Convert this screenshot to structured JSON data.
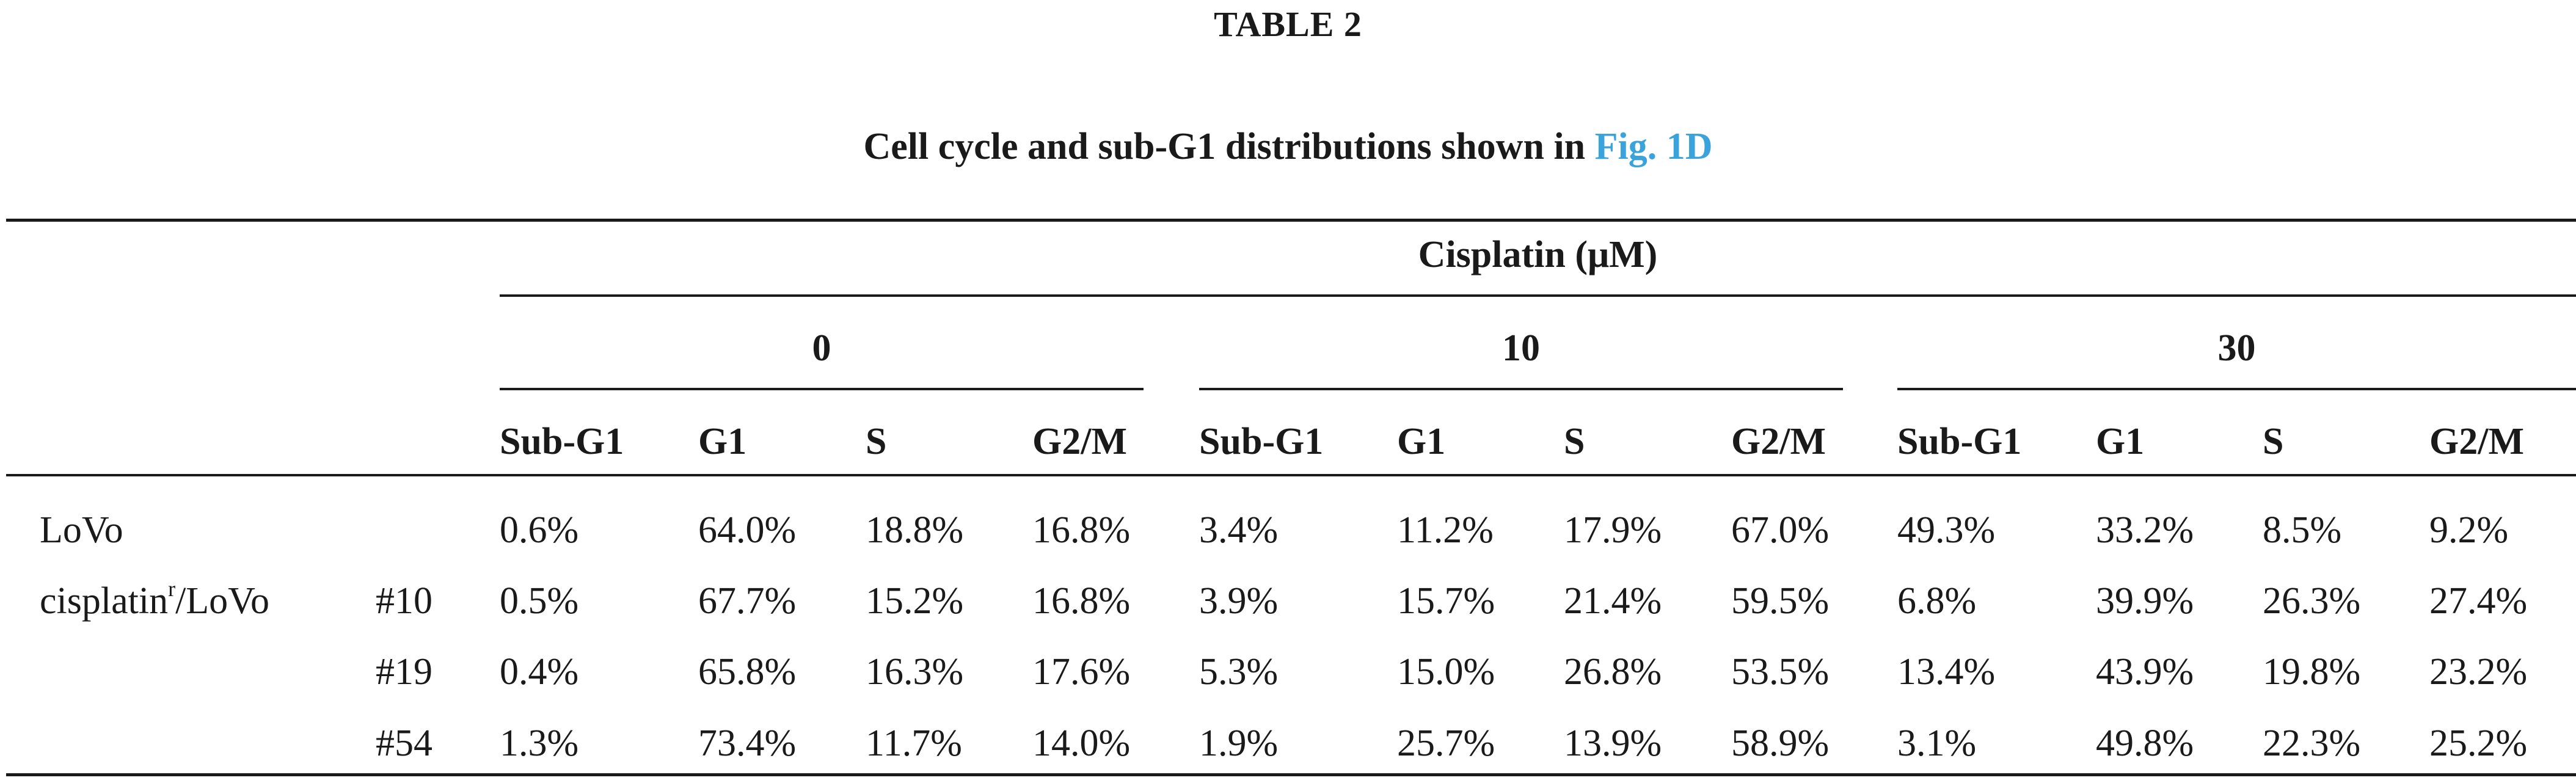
{
  "table_label": "TABLE 2",
  "caption": {
    "text": "Cell cycle and sub-G1 distributions shown in ",
    "link": "Fig. 1D",
    "link_color": "#3aa3db"
  },
  "table": {
    "spanner": "Cisplatin (μM)",
    "dose_groups": [
      "0",
      "10",
      "30"
    ],
    "phase_headers": [
      "Sub-G1",
      "G1",
      "S",
      "G2/M"
    ],
    "rows": [
      {
        "label": "LoVo",
        "clone": "",
        "values": [
          "0.6%",
          "64.0%",
          "18.8%",
          "16.8%",
          "3.4%",
          "11.2%",
          "17.9%",
          "67.0%",
          "49.3%",
          "33.2%",
          "8.5%",
          "9.2%"
        ]
      },
      {
        "label_main": "cisplatin",
        "label_sup": "r",
        "label_suffix": "/LoVo",
        "clone": "#10",
        "values": [
          "0.5%",
          "67.7%",
          "15.2%",
          "16.8%",
          "3.9%",
          "15.7%",
          "21.4%",
          "59.5%",
          "6.8%",
          "39.9%",
          "26.3%",
          "27.4%"
        ]
      },
      {
        "label": "",
        "clone": "#19",
        "values": [
          "0.4%",
          "65.8%",
          "16.3%",
          "17.6%",
          "5.3%",
          "15.0%",
          "26.8%",
          "53.5%",
          "13.4%",
          "43.9%",
          "19.8%",
          "23.2%"
        ]
      },
      {
        "label": "",
        "clone": "#54",
        "values": [
          "1.3%",
          "73.4%",
          "11.7%",
          "14.0%",
          "1.9%",
          "25.7%",
          "13.9%",
          "58.9%",
          "3.1%",
          "49.8%",
          "22.3%",
          "25.2%"
        ]
      }
    ]
  }
}
